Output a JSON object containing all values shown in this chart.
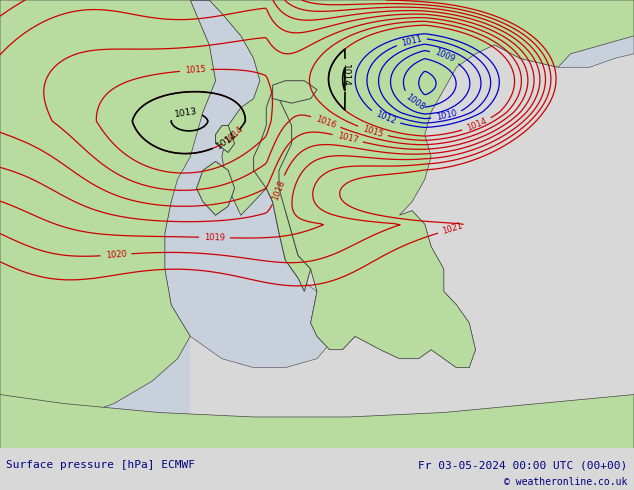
{
  "title_left": "Surface pressure [hPa] ECMWF",
  "title_right": "Fr 03-05-2024 00:00 UTC (00+00)",
  "copyright": "© weatheronline.co.uk",
  "bg_color": "#c8e8b0",
  "sea_color": "#c8d0dc",
  "land_color": "#b8dca0",
  "dark_land_color": "#90b878",
  "border_color": "#444444",
  "bottom_bar_color": "#d8d8d8",
  "bottom_text_color": "#000080",
  "contour_red_color": "#cc0000",
  "contour_blue_color": "#0000cc",
  "contour_black_color": "#000000",
  "figsize": [
    6.34,
    4.9
  ],
  "dpi": 100
}
